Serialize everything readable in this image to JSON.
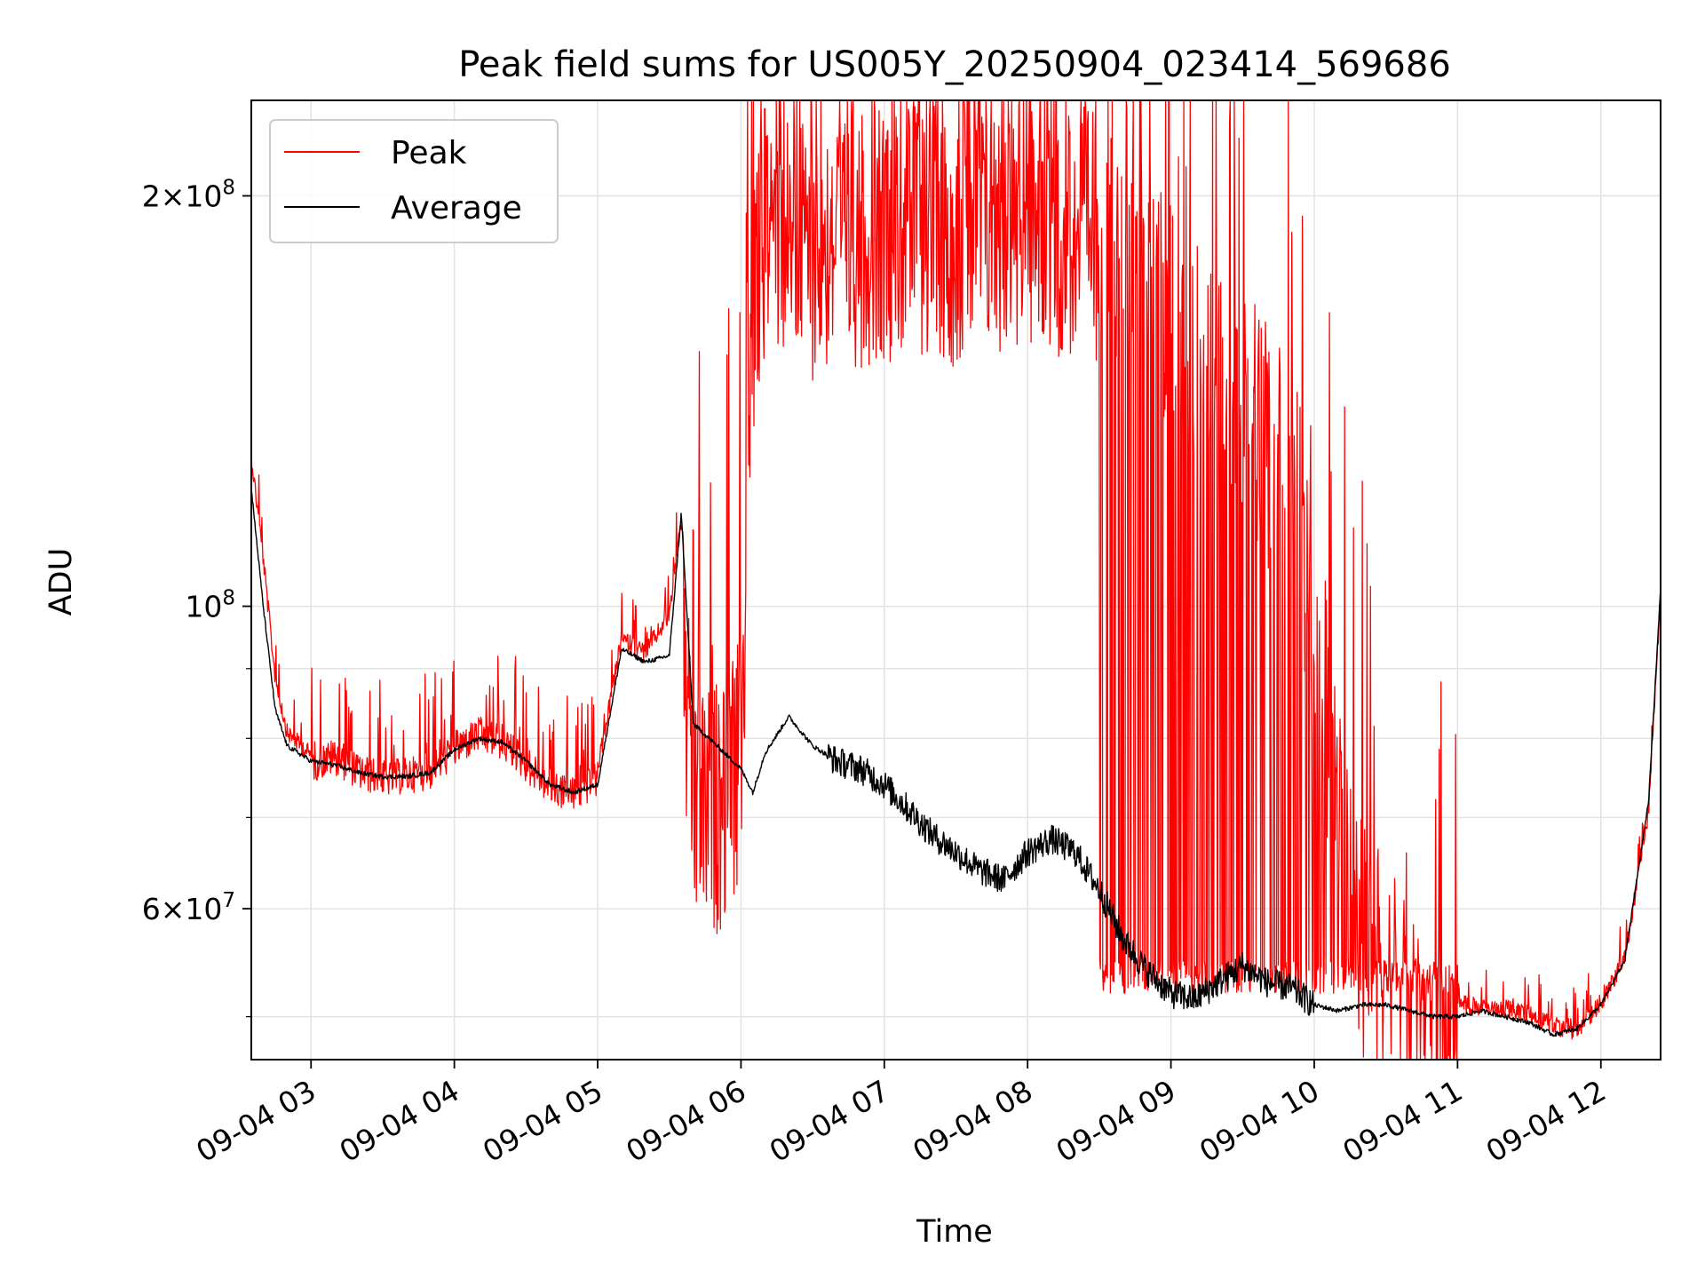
{
  "chart_data": {
    "type": "line",
    "title": "Peak field sums for US005Y_20250904_023414_569686",
    "xlabel": "Time",
    "ylabel": "ADU",
    "y_scale": "log",
    "ylim": [
      46500000,
      235000000
    ],
    "xlim": [
      "09-04 02:35",
      "09-04 12:25"
    ],
    "grid": true,
    "legend_position": "top-left",
    "x_ticks": [
      "09-04 03",
      "09-04 04",
      "09-04 05",
      "09-04 06",
      "09-04 07",
      "09-04 08",
      "09-04 09",
      "09-04 10",
      "09-04 11",
      "09-04 12"
    ],
    "y_ticks": [
      {
        "value": 200000000,
        "mantissa": "2",
        "exponent": "8"
      },
      {
        "value": 100000000,
        "mantissa": "",
        "exponent": "8"
      },
      {
        "value": 60000000,
        "mantissa": "6",
        "exponent": "7"
      }
    ],
    "series": [
      {
        "name": "Peak",
        "color": "#ff0000",
        "x": [
          "09-04 02:35",
          "09-04 02:40",
          "09-04 02:45",
          "09-04 02:50",
          "09-04 03:00",
          "09-04 03:10",
          "09-04 03:20",
          "09-04 03:30",
          "09-04 03:40",
          "09-04 03:50",
          "09-04 04:00",
          "09-04 04:10",
          "09-04 04:20",
          "09-04 04:30",
          "09-04 04:40",
          "09-04 04:50",
          "09-04 05:00",
          "09-04 05:10",
          "09-04 05:20",
          "09-04 05:30",
          "09-04 05:35",
          "09-04 05:40",
          "09-04 05:50",
          "09-04 06:00",
          "09-04 06:05",
          "09-04 06:10",
          "09-04 06:20",
          "09-04 06:30",
          "09-04 06:40",
          "09-04 06:50",
          "09-04 07:00",
          "09-04 07:10",
          "09-04 07:20",
          "09-04 07:30",
          "09-04 07:40",
          "09-04 07:50",
          "09-04 08:00",
          "09-04 08:10",
          "09-04 08:20",
          "09-04 08:30",
          "09-04 08:40",
          "09-04 08:50",
          "09-04 09:00",
          "09-04 09:10",
          "09-04 09:20",
          "09-04 09:30",
          "09-04 09:40",
          "09-04 09:50",
          "09-04 10:00",
          "09-04 10:10",
          "09-04 10:20",
          "09-04 10:30",
          "09-04 10:40",
          "09-04 10:50",
          "09-04 11:00",
          "09-04 11:10",
          "09-04 11:20",
          "09-04 11:30",
          "09-04 11:40",
          "09-04 11:50",
          "09-04 12:00",
          "09-04 12:10",
          "09-04 12:20",
          "09-04 12:25"
        ],
        "values": [
          131000000,
          110000000,
          90000000,
          82000000,
          79000000,
          80000000,
          78000000,
          77000000,
          77500000,
          78000000,
          81000000,
          83000000,
          82000000,
          79000000,
          76000000,
          75000000,
          77000000,
          96000000,
          94000000,
          100000000,
          118000000,
          87000000,
          88000000,
          95000000,
          200000000,
          235000000,
          230000000,
          225000000,
          228000000,
          230000000,
          232000000,
          234000000,
          232000000,
          230000000,
          233000000,
          234000000,
          235000000,
          234000000,
          232000000,
          230000000,
          225000000,
          215000000,
          200000000,
          185000000,
          175000000,
          170000000,
          165000000,
          150000000,
          120000000,
          90000000,
          70000000,
          65000000,
          62000000,
          54000000,
          52000000,
          51500000,
          51500000,
          51000000,
          50000000,
          49500000,
          52000000,
          56000000,
          72000000,
          103000000
        ]
      },
      {
        "name": "Average",
        "color": "#000000",
        "x": [
          "09-04 02:35",
          "09-04 02:40",
          "09-04 02:45",
          "09-04 02:50",
          "09-04 03:00",
          "09-04 03:10",
          "09-04 03:20",
          "09-04 03:30",
          "09-04 03:40",
          "09-04 03:50",
          "09-04 04:00",
          "09-04 04:10",
          "09-04 04:20",
          "09-04 04:30",
          "09-04 04:40",
          "09-04 04:50",
          "09-04 05:00",
          "09-04 05:10",
          "09-04 05:20",
          "09-04 05:30",
          "09-04 05:35",
          "09-04 05:40",
          "09-04 05:50",
          "09-04 06:00",
          "09-04 06:05",
          "09-04 06:10",
          "09-04 06:20",
          "09-04 06:30",
          "09-04 06:40",
          "09-04 06:50",
          "09-04 07:00",
          "09-04 07:10",
          "09-04 07:20",
          "09-04 07:30",
          "09-04 07:40",
          "09-04 07:50",
          "09-04 08:00",
          "09-04 08:10",
          "09-04 08:20",
          "09-04 08:30",
          "09-04 08:40",
          "09-04 08:50",
          "09-04 09:00",
          "09-04 09:10",
          "09-04 09:20",
          "09-04 09:30",
          "09-04 09:40",
          "09-04 09:50",
          "09-04 10:00",
          "09-04 10:10",
          "09-04 10:20",
          "09-04 10:30",
          "09-04 10:40",
          "09-04 10:50",
          "09-04 11:00",
          "09-04 11:10",
          "09-04 11:20",
          "09-04 11:30",
          "09-04 11:40",
          "09-04 11:50",
          "09-04 12:00",
          "09-04 12:10",
          "09-04 12:20",
          "09-04 12:25"
        ],
        "values": [
          122000000,
          100000000,
          84000000,
          79000000,
          77000000,
          76500000,
          75500000,
          75000000,
          75000000,
          75500000,
          78500000,
          80000000,
          79500000,
          77000000,
          74000000,
          73000000,
          74000000,
          93000000,
          91000000,
          92000000,
          117000000,
          82000000,
          79000000,
          76000000,
          73000000,
          78000000,
          83000000,
          79000000,
          77000000,
          76000000,
          74000000,
          71000000,
          68000000,
          66000000,
          64000000,
          63000000,
          66000000,
          67500000,
          66000000,
          62000000,
          57000000,
          54000000,
          52000000,
          51500000,
          53000000,
          54500000,
          53000000,
          52500000,
          51000000,
          50500000,
          51000000,
          51000000,
          50500000,
          50000000,
          50000000,
          50500000,
          50000000,
          49500000,
          48500000,
          49000000,
          51000000,
          55000000,
          72000000,
          103000000
        ]
      }
    ]
  }
}
